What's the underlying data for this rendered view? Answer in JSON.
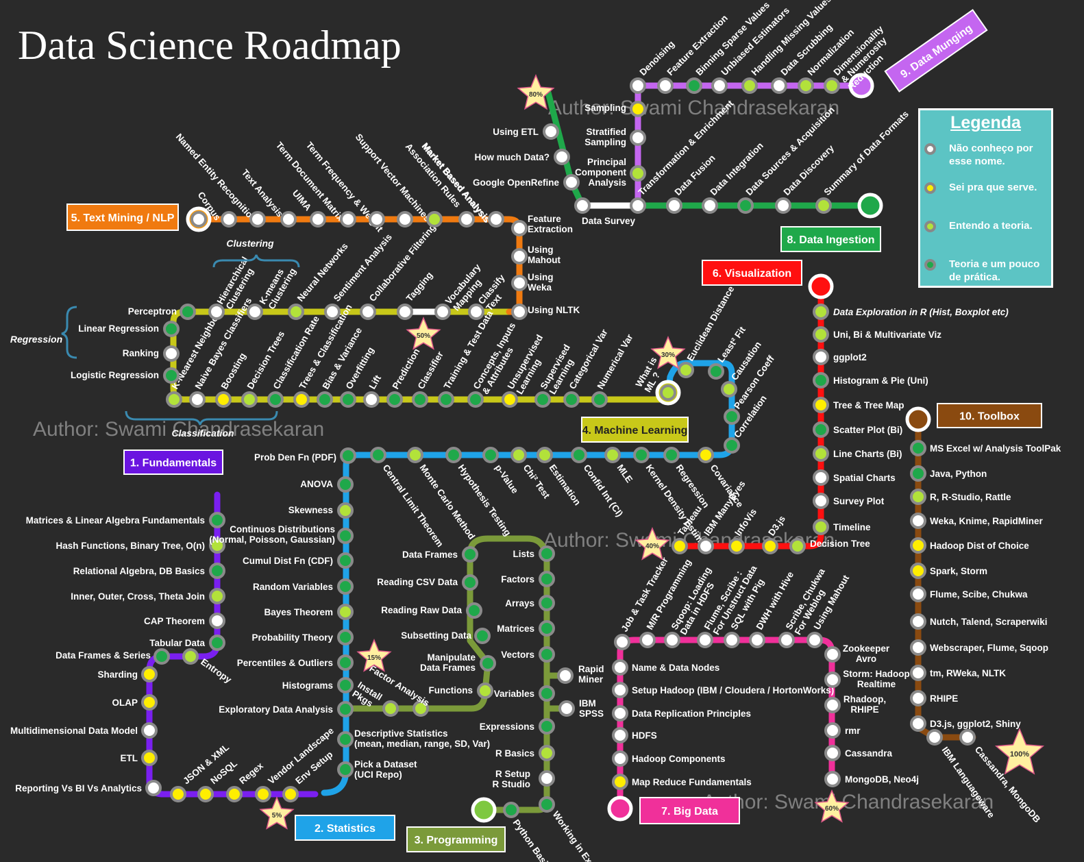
{
  "title": "Data Science Roadmap",
  "watermark": "Author: Swami Chandrasekaran",
  "legend": {
    "title": "Legenda",
    "items": [
      {
        "label": "Não conheço por esse nome.",
        "color": "#ffffff"
      },
      {
        "label": "Sei pra que serve.",
        "color": "#ffee00"
      },
      {
        "label": "Entendo a teoria.",
        "color": "#b2e23a"
      },
      {
        "label": "Teoria e um pouco de prática.",
        "color": "#1fa84a"
      }
    ]
  },
  "colors": {
    "white": "#ffffff",
    "yellow": "#ffee00",
    "lime": "#b2e23a",
    "green": "#1fa84a",
    "node_border": "#8a8a8a",
    "background": "#2a2a2a"
  },
  "lines": [
    {
      "id": "fundamentals",
      "label": "1. Fundamentals",
      "color": "#7a1ff0",
      "stations": [
        "Matrices & Linear Algebra Fundamentals",
        "Hash Functions, Binary Tree, O(n)",
        "Relational Algebra, DB Basics",
        "Inner, Outer, Cross, Theta Join",
        "CAP Theorem",
        "Tabular Data",
        "Data Frames & Series",
        "Entropy",
        "Sharding",
        "OLAP",
        "Multidimensional Data Model",
        "ETL",
        "Reporting Vs BI Vs Analytics",
        "JSON & XML",
        "NoSQL",
        "Regex",
        "Vendor Landscape",
        "Env Setup"
      ]
    },
    {
      "id": "statistics",
      "label": "2. Statistics",
      "color": "#1fa3e8",
      "stations": [
        "Pick a Dataset (UCI Repo)",
        "Descriptive Statistics (mean, median, range, SD, Var)",
        "Exploratory Data Analysis",
        "Histograms",
        "Percentiles & Outliers",
        "Probability Theory",
        "Bayes Theorem",
        "Random Variables",
        "Cumul Dist Fn (CDF)",
        "Continuos Distributions (Normal, Poisson, Gaussian)",
        "Skewness",
        "ANOVA",
        "Prob Den Fn (PDF)",
        "Central Limit Theorem",
        "Monte Carlo Method",
        "Hypothesis Testing",
        "p-Value",
        "Chi² Test",
        "Estimation",
        "Confid Int (CI)",
        "MLE",
        "Kernel Density Estimate",
        "Regression",
        "Covariance",
        "Correlation",
        "Pearson Coeff",
        "Causation",
        "Least² Fit",
        "Euclidean Distance"
      ]
    },
    {
      "id": "programming",
      "label": "3. Programming",
      "color": "#7b9a3a",
      "stations": [
        "Python Basics",
        "Working in Excel",
        "R Setup R Studio",
        "R Basics",
        "Expressions",
        "Variables",
        "IBM SPSS",
        "Rapid Miner",
        "Vectors",
        "Matrices",
        "Arrays",
        "Factors",
        "Lists",
        "Data Frames",
        "Reading CSV Data",
        "Reading Raw Data",
        "Subsetting Data",
        "Manipulate Data Frames",
        "Functions",
        "Factor Analysis",
        "Install Pkgs"
      ]
    },
    {
      "id": "ml",
      "label": "4. Machine Learning",
      "color": "#c8c819",
      "stations": [
        "What is ML?",
        "Numerical Var",
        "Categorical Var",
        "Supervised Learning",
        "Unsupervised Learning",
        "Concepts, Inputs & Attributes",
        "Training & Test Data",
        "Classifier",
        "Prediction",
        "Lift",
        "Overfitting",
        "Bias & Variance",
        "Trees & Classification",
        "Classification Rate",
        "Decision Trees",
        "Boosting",
        "Naive Bayes Classifiers",
        "K-Nearest Neighbor",
        "Logistic Regression",
        "Ranking",
        "Linear Regression",
        "Perceptron",
        "Hierarchical Clustering",
        "K-means Clustering",
        "Neural Networks",
        "Sentiment Analysis",
        "Collaborative Filtering",
        "Tagging",
        "Vocabulary Mapping",
        "Classify Text"
      ]
    },
    {
      "id": "textmining",
      "label": "5. Text Mining / NLP",
      "color": "#f07a10",
      "stations": [
        "Corpus",
        "Named Entity Recognition",
        "Text Analysis",
        "UIMA",
        "Term Document Matrix",
        "Term Frequency & Weight",
        "Support Vector Machines",
        "Association Rules",
        "Market Based Analysis",
        "Feature Extraction",
        "Using Mahout",
        "Using Weka",
        "Using NLTK"
      ]
    },
    {
      "id": "visualization",
      "label": "6. Visualization",
      "color": "#ff1010",
      "stations": [
        "Data Exploration in R (Hist, Boxplot etc)",
        "Uni, Bi & Multivariate Viz",
        "ggplot2",
        "Histogram & Pie (Uni)",
        "Tree & Tree Map",
        "Scatter Plot (Bi)",
        "Line Charts (Bi)",
        "Spatial Charts",
        "Survey Plot",
        "Timeline",
        "Decision Tree",
        "D3.js",
        "InfoVis",
        "IBM ManyEyes",
        "Tableau"
      ]
    },
    {
      "id": "bigdata",
      "label": "7. Big Data",
      "color": "#f0309a",
      "stations": [
        "Map Reduce Fundamentals",
        "Hadoop Components",
        "HDFS",
        "Data Replication Principles",
        "Setup Hadoop (IBM / Cloudera / HortonWorks)",
        "Name & Data Nodes",
        "Job & Task Tracker",
        "M/R Programming",
        "Sqoop: Loading Data in HDFS",
        "Flume, Scribe : For Unstruct Data",
        "SQL with Pig",
        "DWH with Hive",
        "Scribe, Chukwa For Weblog",
        "Using Mahout",
        "Zookeeper Avro",
        "Storm: Hadoop Realtime",
        "Rhadoop, RHIPE",
        "rmr",
        "Cassandra",
        "MongoDB, Neo4j"
      ]
    },
    {
      "id": "ingestion",
      "label": "8. Data Ingestion",
      "color": "#1fa84a",
      "stations": [
        "Summary of Data Formats",
        "Data Discovery",
        "Data Sources & Acquisition",
        "Data Integration",
        "Data Fusion",
        "Transformation & Enrichment",
        "Data Survey",
        "Google OpenRefine",
        "How much Data?",
        "Using ETL"
      ]
    },
    {
      "id": "munging",
      "label": "9. Data Munging",
      "color": "#c466f0",
      "stations": [
        "Dimensionality & Numerosity Reduction",
        "Normalization",
        "Data Scrubbing",
        "Handling Missing Values",
        "Unbiased Estimators",
        "Binning Sparse Values",
        "Feature Extraction",
        "Denoising",
        "Sampling",
        "Stratified Sampling",
        "Principal Component Analysis"
      ]
    },
    {
      "id": "toolbox",
      "label": "10. Toolbox",
      "color": "#8a4a10",
      "stations": [
        "MS Excel w/ Analysis ToolPak",
        "Java, Python",
        "R, R-Studio, Rattle",
        "Weka, Knime, RapidMiner",
        "Hadoop Dist of Choice",
        "Spark, Storm",
        "Flume, Scibe, Chukwa",
        "Nutch, Talend, Scraperwiki",
        "Webscraper, Flume, Sqoop",
        "tm, RWeka, NLTK",
        "RHIPE",
        "D3.js, ggplot2,  Shiny",
        "IBM Languageware",
        "Cassandra, MongoDB"
      ]
    }
  ],
  "milestones": [
    "5%",
    "15%",
    "30%",
    "40%",
    "50%",
    "60%",
    "80%",
    "100%"
  ],
  "groups": [
    "Regression",
    "Clustering",
    "Classification"
  ]
}
